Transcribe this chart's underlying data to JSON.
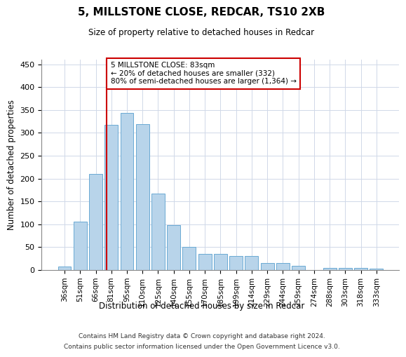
{
  "title": "5, MILLSTONE CLOSE, REDCAR, TS10 2XB",
  "subtitle": "Size of property relative to detached houses in Redcar",
  "xlabel": "Distribution of detached houses by size in Redcar",
  "ylabel": "Number of detached properties",
  "categories": [
    "36sqm",
    "51sqm",
    "66sqm",
    "81sqm",
    "95sqm",
    "110sqm",
    "125sqm",
    "140sqm",
    "155sqm",
    "170sqm",
    "185sqm",
    "199sqm",
    "214sqm",
    "229sqm",
    "244sqm",
    "259sqm",
    "274sqm",
    "288sqm",
    "303sqm",
    "318sqm",
    "333sqm"
  ],
  "bar_heights": [
    7,
    106,
    210,
    317,
    344,
    319,
    167,
    98,
    50,
    35,
    35,
    30,
    30,
    16,
    16,
    9,
    0,
    5,
    5,
    5,
    3
  ],
  "bar_color": "#b8d4ea",
  "bar_edge_color": "#6aaad4",
  "vline_color": "#cc0000",
  "annotation_text": "5 MILLSTONE CLOSE: 83sqm\n← 20% of detached houses are smaller (332)\n80% of semi-detached houses are larger (1,364) →",
  "annotation_box_color": "white",
  "annotation_box_edge_color": "#cc0000",
  "ylim": [
    0,
    460
  ],
  "yticks": [
    0,
    50,
    100,
    150,
    200,
    250,
    300,
    350,
    400,
    450
  ],
  "grid_color": "#d0d8e8",
  "background_color": "white",
  "footer_line1": "Contains HM Land Registry data © Crown copyright and database right 2024.",
  "footer_line2": "Contains public sector information licensed under the Open Government Licence v3.0."
}
